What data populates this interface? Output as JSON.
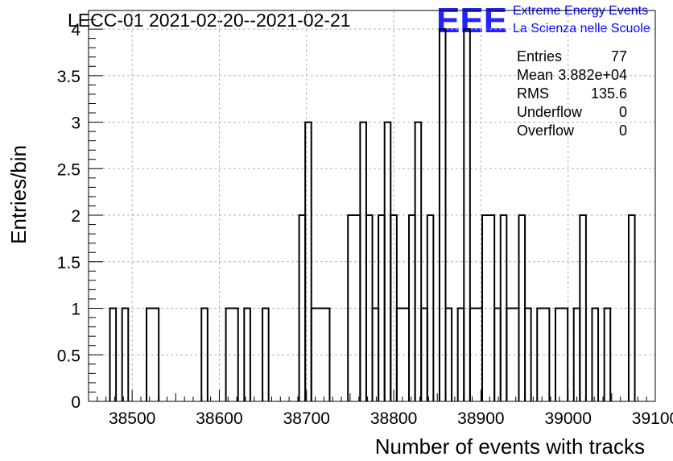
{
  "title": "LECC-01 2021-02-20--2021-02-21",
  "logo": {
    "mark": "EEE",
    "line1": "Extreme Energy Events",
    "line2": "La Scienza nelle Scuole",
    "color": "#2222ff"
  },
  "stats": [
    {
      "label": "Entries",
      "value": "77"
    },
    {
      "label": "Mean",
      "value": "3.882e+04"
    },
    {
      "label": "RMS",
      "value": "135.6"
    },
    {
      "label": "Underflow",
      "value": "0"
    },
    {
      "label": "Overflow",
      "value": "0"
    }
  ],
  "chart_data": {
    "type": "bar",
    "histogram": "step",
    "xlabel": "Number of events with tracks",
    "ylabel": "Entries/bin",
    "xlim": [
      38450,
      39100
    ],
    "ylim": [
      0,
      4.2
    ],
    "xticks": [
      "38500",
      "38600",
      "38700",
      "38800",
      "38900",
      "39000",
      "39100"
    ],
    "yticks": [
      "0",
      "0.5",
      "1",
      "1.5",
      "2",
      "2.5",
      "3",
      "3.5",
      "4"
    ],
    "grid": true,
    "bins": [
      {
        "x0": 38474.5,
        "x1": 38481.5,
        "y": 1
      },
      {
        "x0": 38488.5,
        "x1": 38495.5,
        "y": 1
      },
      {
        "x0": 38516.5,
        "x1": 38530.5,
        "y": 1
      },
      {
        "x0": 38579.5,
        "x1": 38586.5,
        "y": 1
      },
      {
        "x0": 38607.5,
        "x1": 38621.5,
        "y": 1
      },
      {
        "x0": 38628.5,
        "x1": 38635.5,
        "y": 1
      },
      {
        "x0": 38649.5,
        "x1": 38656.5,
        "y": 1
      },
      {
        "x0": 38691.5,
        "x1": 38698.5,
        "y": 2
      },
      {
        "x0": 38698.5,
        "x1": 38705.5,
        "y": 3
      },
      {
        "x0": 38705.5,
        "x1": 38726.5,
        "y": 1
      },
      {
        "x0": 38747.5,
        "x1": 38761.5,
        "y": 2
      },
      {
        "x0": 38761.5,
        "x1": 38768.5,
        "y": 3
      },
      {
        "x0": 38768.5,
        "x1": 38775.5,
        "y": 2
      },
      {
        "x0": 38775.5,
        "x1": 38782.5,
        "y": 1
      },
      {
        "x0": 38782.5,
        "x1": 38789.5,
        "y": 2
      },
      {
        "x0": 38789.5,
        "x1": 38796.5,
        "y": 3
      },
      {
        "x0": 38796.5,
        "x1": 38803.5,
        "y": 2
      },
      {
        "x0": 38803.5,
        "x1": 38817.5,
        "y": 1
      },
      {
        "x0": 38817.5,
        "x1": 38824.5,
        "y": 2
      },
      {
        "x0": 38824.5,
        "x1": 38831.5,
        "y": 3
      },
      {
        "x0": 38831.5,
        "x1": 38838.5,
        "y": 1
      },
      {
        "x0": 38838.5,
        "x1": 38845.5,
        "y": 2
      },
      {
        "x0": 38852.5,
        "x1": 38859.5,
        "y": 4
      },
      {
        "x0": 38859.5,
        "x1": 38866.5,
        "y": 1
      },
      {
        "x0": 38873.5,
        "x1": 38880.5,
        "y": 1
      },
      {
        "x0": 38880.5,
        "x1": 38887.5,
        "y": 4
      },
      {
        "x0": 38887.5,
        "x1": 38901.5,
        "y": 1
      },
      {
        "x0": 38901.5,
        "x1": 38915.5,
        "y": 2
      },
      {
        "x0": 38915.5,
        "x1": 38922.5,
        "y": 1
      },
      {
        "x0": 38922.5,
        "x1": 38929.5,
        "y": 2
      },
      {
        "x0": 38929.5,
        "x1": 38943.5,
        "y": 1
      },
      {
        "x0": 38943.5,
        "x1": 38950.5,
        "y": 2
      },
      {
        "x0": 38950.5,
        "x1": 38957.5,
        "y": 1
      },
      {
        "x0": 38964.5,
        "x1": 38978.5,
        "y": 1
      },
      {
        "x0": 38985.5,
        "x1": 38999.5,
        "y": 1
      },
      {
        "x0": 39006.5,
        "x1": 39013.5,
        "y": 1
      },
      {
        "x0": 39013.5,
        "x1": 39020.5,
        "y": 2
      },
      {
        "x0": 39027.5,
        "x1": 39034.5,
        "y": 1
      },
      {
        "x0": 39041.5,
        "x1": 39048.5,
        "y": 1
      },
      {
        "x0": 39069.5,
        "x1": 39076.5,
        "y": 2
      }
    ]
  }
}
